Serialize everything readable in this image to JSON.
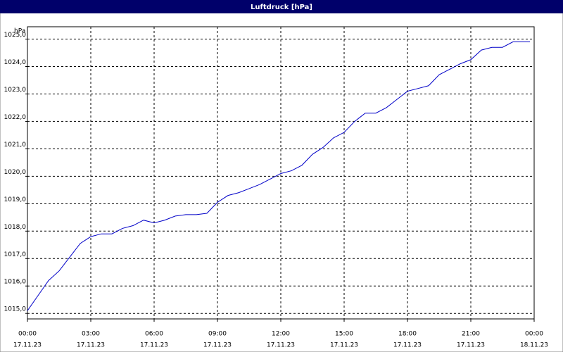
{
  "chart_data": {
    "type": "line",
    "title": "Luftdruck [hPa]",
    "y_label": "hPa",
    "x": [
      0,
      0.5,
      1,
      1.5,
      2,
      2.5,
      3,
      3.5,
      4,
      4.5,
      5,
      5.5,
      6,
      6.5,
      7,
      7.5,
      8,
      8.5,
      9,
      9.5,
      10,
      10.5,
      11,
      11.5,
      12,
      12.5,
      13,
      13.5,
      14,
      14.5,
      15,
      15.5,
      16,
      16.5,
      17,
      17.5,
      18,
      18.5,
      19,
      19.5,
      20,
      20.5,
      21,
      21.5,
      22,
      22.5,
      23,
      23.5,
      23.8
    ],
    "series": [
      {
        "name": "Luftdruck",
        "color": "#0000c8",
        "values": [
          1015.1,
          1015.65,
          1016.2,
          1016.55,
          1017.05,
          1017.55,
          1017.8,
          1017.9,
          1017.9,
          1018.1,
          1018.2,
          1018.4,
          1018.3,
          1018.4,
          1018.55,
          1018.6,
          1018.6,
          1018.65,
          1019.05,
          1019.3,
          1019.4,
          1019.55,
          1019.7,
          1019.9,
          1020.1,
          1020.2,
          1020.4,
          1020.8,
          1021.05,
          1021.4,
          1021.6,
          1022.0,
          1022.3,
          1022.3,
          1022.5,
          1022.8,
          1023.1,
          1023.2,
          1023.3,
          1023.7,
          1023.9,
          1024.1,
          1024.25,
          1024.6,
          1024.7,
          1024.7,
          1024.9,
          1024.9,
          1024.9
        ]
      }
    ],
    "xlim": [
      0,
      24
    ],
    "xticks": [
      {
        "value": 0,
        "label": "00:00",
        "date": "17.11.23"
      },
      {
        "value": 3,
        "label": "03:00",
        "date": "17.11.23"
      },
      {
        "value": 6,
        "label": "06:00",
        "date": "17.11.23"
      },
      {
        "value": 9,
        "label": "09:00",
        "date": "17.11.23"
      },
      {
        "value": 12,
        "label": "12:00",
        "date": "17.11.23"
      },
      {
        "value": 15,
        "label": "15:00",
        "date": "17.11.23"
      },
      {
        "value": 18,
        "label": "18:00",
        "date": "17.11.23"
      },
      {
        "value": 21,
        "label": "21:00",
        "date": "17.11.23"
      },
      {
        "value": 24,
        "label": "00:00",
        "date": "18.11.23"
      }
    ],
    "ylim": [
      1014.8,
      1025.45
    ],
    "yticks": [
      {
        "value": 1015,
        "label": "1015,0"
      },
      {
        "value": 1016,
        "label": "1016,0"
      },
      {
        "value": 1017,
        "label": "1017,0"
      },
      {
        "value": 1018,
        "label": "1018,0"
      },
      {
        "value": 1019,
        "label": "1019,0"
      },
      {
        "value": 1020,
        "label": "1020,0"
      },
      {
        "value": 1021,
        "label": "1021,0"
      },
      {
        "value": 1022,
        "label": "1022,0"
      },
      {
        "value": 1023,
        "label": "1023,0"
      },
      {
        "value": 1024,
        "label": "1024,0"
      },
      {
        "value": 1025,
        "label": "1025,0"
      }
    ],
    "grid": true
  }
}
